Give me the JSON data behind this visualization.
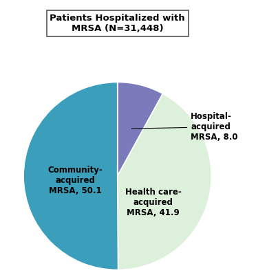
{
  "title": "Patients Hospitalized with\nMRSA (N=31,448)",
  "slices": [
    50.1,
    41.9,
    8.0
  ],
  "colors": [
    "#3B9EBB",
    "#DCF0DC",
    "#7B7BBB"
  ],
  "startangle": 90,
  "figsize": [
    3.88,
    4.0
  ],
  "dpi": 100,
  "background": "#FFFFFF",
  "text_color": "#000000",
  "label_fontsize": 8.5,
  "title_fontsize": 9.5,
  "title_box_color": "#FFFFFF",
  "title_box_edge": "#555555",
  "community_label": "Community-\nacquired\nMRSA, 50.1",
  "healthcare_label": "Health care-\nacquired\nMRSA, 41.9",
  "hospital_label": "Hospital-\nacquired\nMRSA, 8.0"
}
